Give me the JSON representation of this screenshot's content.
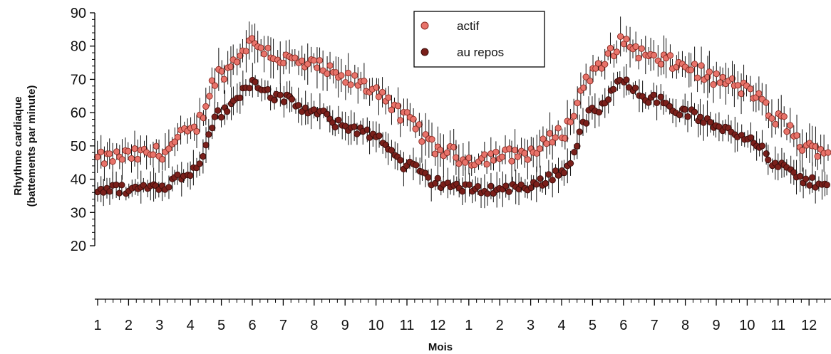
{
  "chart_data": {
    "type": "scatter",
    "ylabel_line1": "Rhythme cardiaque",
    "ylabel_line2": "(battements par minute)",
    "xlabel": "Mois",
    "ylim": [
      20,
      90
    ],
    "yticks": [
      20,
      30,
      40,
      50,
      60,
      70,
      80,
      90
    ],
    "xtick_labels": [
      "1",
      "2",
      "3",
      "4",
      "5",
      "6",
      "7",
      "8",
      "9",
      "10",
      "11",
      "12",
      "1",
      "2",
      "3",
      "4",
      "5",
      "6",
      "7",
      "8",
      "9",
      "10",
      "11",
      "12"
    ],
    "grid": false,
    "legend_position": "top-center",
    "error_bars": true,
    "series": [
      {
        "name": "actif",
        "color": "#e8736a",
        "edge": "#8a2a22",
        "monthly_values": [
          46,
          47,
          48,
          54,
          72,
          81,
          76,
          74,
          70,
          67,
          58,
          49,
          46,
          47,
          48,
          54,
          72,
          81,
          76,
          74,
          70,
          67,
          58,
          49
        ]
      },
      {
        "name": "au repos",
        "color": "#7a1f1a",
        "edge": "#3a0c0a",
        "monthly_values": [
          37,
          37,
          38,
          42,
          60,
          69,
          64,
          60,
          56,
          53,
          44,
          39,
          37,
          37,
          38,
          42,
          60,
          69,
          64,
          60,
          56,
          53,
          44,
          39
        ]
      }
    ]
  }
}
